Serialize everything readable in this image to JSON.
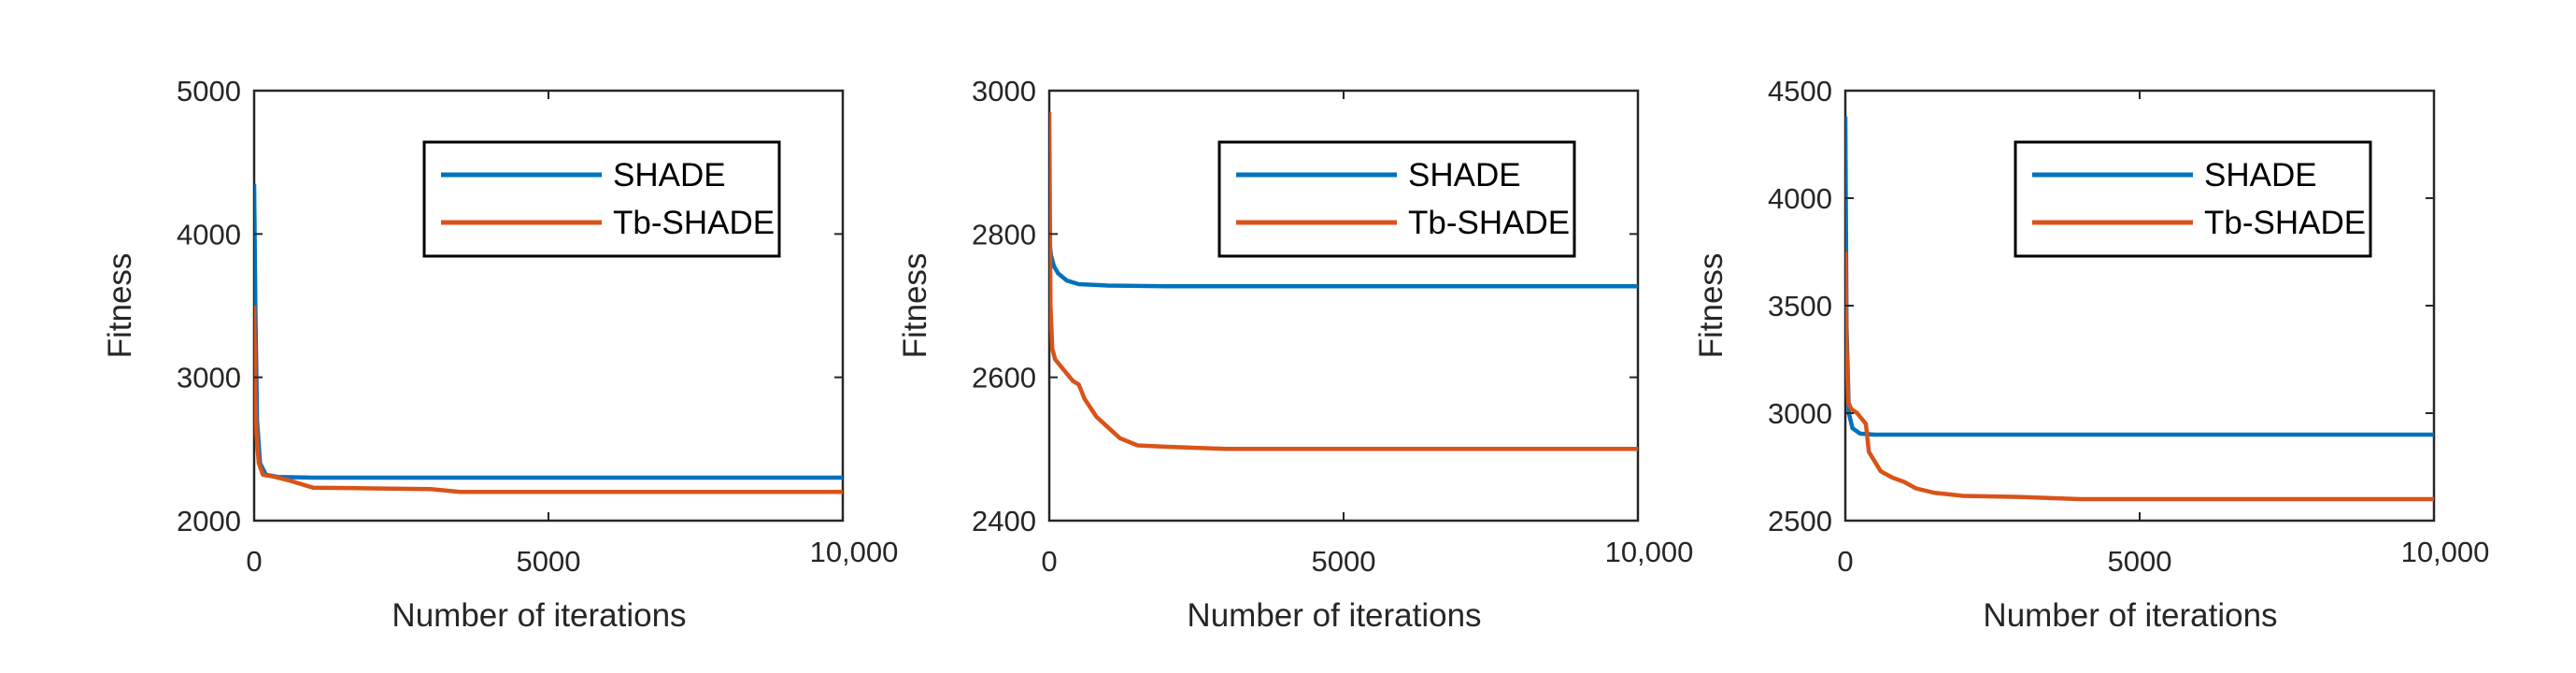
{
  "chart_data": [
    {
      "type": "line",
      "xlabel": "Number of iterations",
      "ylabel": "Fitness",
      "xlim": [
        0,
        10000
      ],
      "ylim": [
        2000,
        5000
      ],
      "xticks": [
        0,
        5000,
        10000
      ],
      "xtick_labels": [
        "0",
        "5000",
        "10,000"
      ],
      "yticks": [
        2000,
        3000,
        4000,
        5000
      ],
      "ytick_labels": [
        "2000",
        "3000",
        "4000",
        "5000"
      ],
      "grid": false,
      "legend_position": "top-right",
      "series": [
        {
          "name": "SHADE",
          "color": "#0072BD",
          "x": [
            0,
            20,
            50,
            100,
            200,
            400,
            1000,
            3000,
            6000,
            10000
          ],
          "y": [
            4350,
            3500,
            2700,
            2400,
            2320,
            2305,
            2300,
            2300,
            2300,
            2300
          ]
        },
        {
          "name": "Tb-SHADE",
          "color": "#D95319",
          "x": [
            0,
            20,
            40,
            80,
            150,
            300,
            600,
            1000,
            2000,
            3000,
            3500,
            5000,
            7000,
            10000
          ],
          "y": [
            3500,
            2900,
            2600,
            2400,
            2320,
            2310,
            2280,
            2230,
            2225,
            2220,
            2200,
            2200,
            2200,
            2200
          ]
        }
      ]
    },
    {
      "type": "line",
      "xlabel": "Number of iterations",
      "ylabel": "Fitness",
      "xlim": [
        0,
        10000
      ],
      "ylim": [
        2400,
        3000
      ],
      "xticks": [
        0,
        5000,
        10000
      ],
      "xtick_labels": [
        "0",
        "5000",
        "10,000"
      ],
      "yticks": [
        2400,
        2600,
        2800,
        3000
      ],
      "ytick_labels": [
        "2400",
        "2600",
        "2800",
        "3000"
      ],
      "grid": false,
      "legend_position": "top-right",
      "series": [
        {
          "name": "SHADE",
          "color": "#0072BD",
          "x": [
            0,
            30,
            80,
            150,
            300,
            500,
            1000,
            2000,
            4000,
            10000
          ],
          "y": [
            2790,
            2770,
            2755,
            2745,
            2735,
            2730,
            2728,
            2727,
            2727,
            2727
          ]
        },
        {
          "name": "Tb-SHADE",
          "color": "#D95319",
          "x": [
            0,
            20,
            50,
            100,
            200,
            400,
            500,
            600,
            800,
            1000,
            1200,
            1500,
            2000,
            3000,
            5000,
            10000
          ],
          "y": [
            2970,
            2700,
            2640,
            2625,
            2615,
            2595,
            2590,
            2570,
            2545,
            2530,
            2515,
            2505,
            2503,
            2500,
            2500,
            2500
          ]
        }
      ]
    },
    {
      "type": "line",
      "xlabel": "Number of iterations",
      "ylabel": "Fitness",
      "xlim": [
        0,
        10000
      ],
      "ylim": [
        2500,
        4500
      ],
      "xticks": [
        0,
        5000,
        10000
      ],
      "xtick_labels": [
        "0",
        "5000",
        "10,000"
      ],
      "yticks": [
        2500,
        3000,
        3500,
        4000,
        4500
      ],
      "ytick_labels": [
        "2500",
        "3000",
        "3500",
        "4000",
        "4500"
      ],
      "grid": false,
      "legend_position": "top-right",
      "series": [
        {
          "name": "SHADE",
          "color": "#0072BD",
          "x": [
            0,
            20,
            60,
            120,
            250,
            500,
            1000,
            10000
          ],
          "y": [
            4380,
            3400,
            3000,
            2930,
            2905,
            2900,
            2900,
            2900
          ]
        },
        {
          "name": "Tb-SHADE",
          "color": "#D95319",
          "x": [
            0,
            20,
            50,
            100,
            200,
            350,
            400,
            600,
            800,
            1000,
            1200,
            1500,
            2000,
            3000,
            4000,
            10000
          ],
          "y": [
            3750,
            3300,
            3050,
            3020,
            3000,
            2950,
            2820,
            2730,
            2700,
            2680,
            2650,
            2630,
            2615,
            2610,
            2600,
            2600
          ]
        }
      ]
    }
  ]
}
